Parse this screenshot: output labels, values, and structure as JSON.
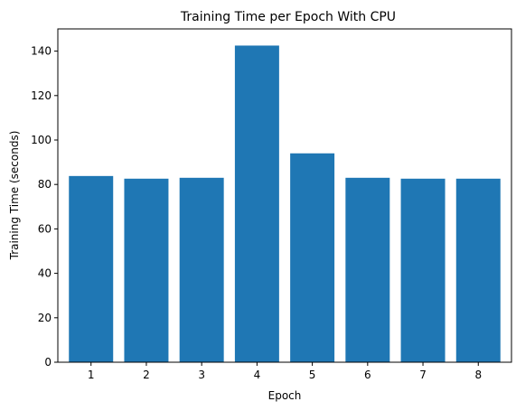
{
  "chart_data": {
    "type": "bar",
    "title": "Training Time per Epoch With CPU",
    "xlabel": "Epoch",
    "ylabel": "Training Time (seconds)",
    "categories": [
      "1",
      "2",
      "3",
      "4",
      "5",
      "6",
      "7",
      "8"
    ],
    "values": [
      83.8,
      82.6,
      83.0,
      142.5,
      94.0,
      83.0,
      82.6,
      82.6
    ],
    "ylim": [
      0,
      150
    ],
    "yticks": [
      0,
      20,
      40,
      60,
      80,
      100,
      120,
      140
    ],
    "ytick_labels": [
      "0",
      "20",
      "40",
      "60",
      "80",
      "100",
      "120",
      "140"
    ],
    "bar_color": "#1f77b4",
    "grid": false,
    "legend": "none"
  }
}
